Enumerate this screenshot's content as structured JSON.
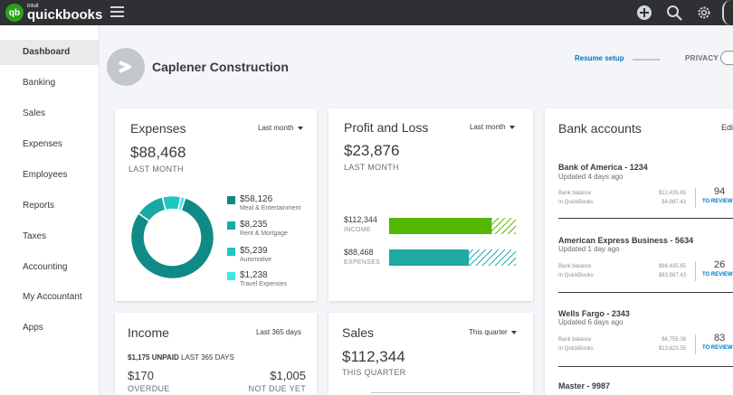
{
  "app": {
    "logo_badge": "qb",
    "logo_intuit": "intuit",
    "logo_name": "quickbooks"
  },
  "topbar": {
    "icons": [
      "menu-icon",
      "plus-icon",
      "search-icon",
      "gear-icon"
    ]
  },
  "sidebar": {
    "items": [
      {
        "label": "Dashboard",
        "active": true
      },
      {
        "label": "Banking"
      },
      {
        "label": "Sales"
      },
      {
        "label": "Expenses"
      },
      {
        "label": "Employees"
      },
      {
        "label": "Reports"
      },
      {
        "label": "Taxes"
      },
      {
        "label": "Accounting"
      },
      {
        "label": "My Accountant"
      },
      {
        "label": "Apps"
      }
    ]
  },
  "header": {
    "company_name": "Caplener Construction",
    "resume_setup": "Resume setup",
    "privacy": "PRIVACY"
  },
  "expenses": {
    "title": "Expenses",
    "filter": "Last month",
    "total": "$88,468",
    "period": "LAST MONTH",
    "chart_data": {
      "type": "pie",
      "categories": [
        "Meal & Entertainment",
        "Rent & Mortgage",
        "Automotive",
        "Travel Expenses"
      ],
      "values": [
        58126,
        8235,
        5239,
        1238
      ],
      "colors": [
        "#108a86",
        "#19a8a3",
        "#20c6c0",
        "#3ee8e0"
      ]
    },
    "legend": [
      {
        "amount": "$58,126",
        "category": "Meal & Entertainment",
        "color": "#108a86"
      },
      {
        "amount": "$8,235",
        "category": "Rent & Mortgage",
        "color": "#19a8a3"
      },
      {
        "amount": "$5,239",
        "category": "Automotive",
        "color": "#20c6c0"
      },
      {
        "amount": "$1,238",
        "category": "Travel Expenses",
        "color": "#3ee8e0"
      }
    ]
  },
  "profit_loss": {
    "title": "Profit and Loss",
    "filter": "Last month",
    "total": "$23,876",
    "period": "LAST MONTH",
    "income_amount": "$112,344",
    "income_label": "INCOME",
    "expenses_amount": "$88,468",
    "expenses_label": "EXPENSES",
    "income_fill": 0.81,
    "expenses_fill": 0.63,
    "income_color": "#53b700",
    "expenses_color": "#20a8a2"
  },
  "bank_accounts": {
    "title": "Bank accounts",
    "edit": "Edit",
    "bank_balance_label": "Bank balance",
    "in_qb_label": "In QuickBooks",
    "review_label": "TO REVIEW",
    "accounts": [
      {
        "name": "Bank of America - 1234",
        "updated": "Updated 4 days ago",
        "bank_balance": "$12,435.65",
        "in_qb": "$4,987.43",
        "count": "94"
      },
      {
        "name": "American Express Business - 5634",
        "updated": "Updated 1 day ago",
        "bank_balance": "$88,435.65",
        "in_qb": "$83,987.43",
        "count": "26"
      },
      {
        "name": "Wells Fargo - 2343",
        "updated": "Updated 6 days ago",
        "bank_balance": "$6,755.08",
        "in_qb": "$13,823.55",
        "count": "83"
      },
      {
        "name": "Master - 9987",
        "updated": ""
      }
    ]
  },
  "income": {
    "title": "Income",
    "filter": "Last 365 days",
    "unpaid_amount": "$1,175 UNPAID",
    "unpaid_period": "LAST 365 DAYS",
    "overdue_amount": "$170",
    "overdue_label": "OVERDUE",
    "notdue_amount": "$1,005",
    "notdue_label": "NOT DUE YET"
  },
  "sales": {
    "title": "Sales",
    "filter": "This quarter",
    "total": "$112,344",
    "period": "THIS QUARTER"
  }
}
